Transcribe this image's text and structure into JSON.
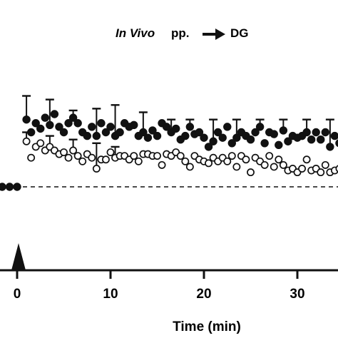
{
  "chart_data": {
    "type": "scatter",
    "title": {
      "italic_part": "In Vivo",
      "plain_part": "pp.",
      "target": "DG"
    },
    "xlabel": "Time (min)",
    "ylabel": "",
    "xlim": [
      -3.4,
      36
    ],
    "ylim": [
      -100,
      105
    ],
    "x_ticks": [
      0,
      10,
      20,
      30
    ],
    "x_tick_labels": [
      "0",
      "10",
      "20",
      "30"
    ],
    "baseline": 0,
    "stimulus_marker_time": 0,
    "grid": false,
    "series": [
      {
        "marker": "filled-circle",
        "color": "#111111",
        "x": [
          -2.4,
          -1.6,
          -0.8,
          0,
          1,
          1.5,
          2,
          2.5,
          3,
          3.5,
          4,
          4.5,
          5,
          5.5,
          6,
          6.5,
          7,
          7.5,
          8,
          8.5,
          9,
          9.5,
          10,
          10.5,
          11,
          11.5,
          12,
          12.5,
          13,
          13.5,
          14,
          14.5,
          15,
          15.5,
          16,
          16.5,
          17,
          17.5,
          18,
          18.5,
          19,
          19.5,
          20,
          20.5,
          21,
          21.5,
          22,
          22.5,
          23,
          23.5,
          24,
          24.5,
          25,
          25.5,
          26,
          26.5,
          27,
          27.5,
          28,
          28.5,
          29,
          29.5,
          30,
          30.5,
          31,
          31.5,
          32,
          32.5,
          33,
          33.5,
          34,
          34.5,
          35
        ],
        "y": [
          -2,
          0,
          0,
          0,
          37,
          30,
          35,
          32,
          38,
          34,
          40,
          33,
          30,
          35,
          38,
          35,
          30,
          28,
          33,
          28,
          35,
          30,
          33,
          28,
          30,
          35,
          33,
          34,
          28,
          30,
          27,
          31,
          28,
          35,
          33,
          30,
          32,
          26,
          28,
          33,
          29,
          30,
          27,
          22,
          25,
          30,
          27,
          33,
          24,
          27,
          30,
          28,
          26,
          30,
          33,
          24,
          30,
          29,
          23,
          31,
          25,
          28,
          27,
          28,
          30,
          26,
          30,
          26,
          30,
          22,
          28,
          24,
          27
        ],
        "error_bars": [
          {
            "x": 1.0,
            "upper": 50
          },
          {
            "x": 3.5,
            "upper": 48
          },
          {
            "x": 6.0,
            "upper": 42
          },
          {
            "x": 8.5,
            "upper": 43
          },
          {
            "x": 10.5,
            "upper": 45
          },
          {
            "x": 13.5,
            "upper": 41
          },
          {
            "x": 16.5,
            "upper": 37
          },
          {
            "x": 18.5,
            "upper": 37
          },
          {
            "x": 21.0,
            "upper": 37
          },
          {
            "x": 23.5,
            "upper": 37
          },
          {
            "x": 26.0,
            "upper": 37
          },
          {
            "x": 28.5,
            "upper": 37
          },
          {
            "x": 31.0,
            "upper": 37
          },
          {
            "x": 33.5,
            "upper": 37
          }
        ]
      },
      {
        "marker": "open-circle",
        "color": "#111111",
        "x": [
          1,
          1.5,
          2,
          2.5,
          3,
          3.5,
          4,
          4.5,
          5,
          5.5,
          6,
          6.5,
          7,
          7.5,
          8,
          8.5,
          9,
          9.5,
          10,
          10.5,
          11,
          11.5,
          12,
          12.5,
          13,
          13.5,
          14,
          14.5,
          15,
          15.5,
          16,
          16.5,
          17,
          17.5,
          18,
          18.5,
          19,
          19.5,
          20,
          20.5,
          21,
          21.5,
          22,
          22.5,
          23,
          23.5,
          24,
          24.5,
          25,
          25.5,
          26,
          26.5,
          27,
          27.5,
          28,
          28.5,
          29,
          29.5,
          30,
          30.5,
          31,
          31.5,
          32,
          32.5,
          33,
          33.5,
          34,
          34.5,
          35
        ],
        "y": [
          25,
          16,
          22,
          24,
          20,
          22,
          20,
          18,
          19,
          16,
          20,
          17,
          14,
          18,
          16,
          10,
          15,
          15,
          19,
          16,
          17,
          17,
          15,
          17,
          14,
          18,
          18,
          17,
          17,
          12,
          18,
          17,
          19,
          17,
          14,
          11,
          17,
          15,
          14,
          13,
          16,
          14,
          16,
          14,
          17,
          11,
          17,
          15,
          8,
          16,
          14,
          12,
          17,
          11,
          15,
          12,
          9,
          10,
          8,
          10,
          15,
          9,
          10,
          8,
          12,
          8,
          9,
          10,
          8
        ],
        "error_bars": [
          {
            "x": 1.0,
            "upper": 30
          },
          {
            "x": 3.5,
            "upper": 28
          },
          {
            "x": 6.0,
            "upper": 26
          },
          {
            "x": 8.5,
            "upper": 24
          },
          {
            "x": 10.5,
            "upper": 22
          }
        ]
      }
    ]
  }
}
